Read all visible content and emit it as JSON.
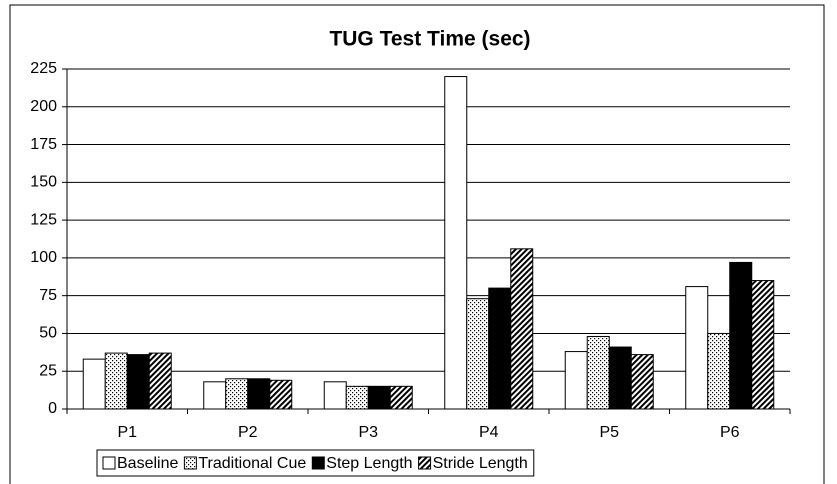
{
  "chart_data": {
    "type": "bar",
    "title": "TUG Test Time (sec)",
    "categories": [
      "P1",
      "P2",
      "P3",
      "P4",
      "P5",
      "P6"
    ],
    "series": [
      {
        "name": "Baseline",
        "color": "#ffffff",
        "pattern": "none",
        "values": [
          33,
          18,
          18,
          220,
          38,
          81
        ]
      },
      {
        "name": "Traditional Cue",
        "color": "#ffffff",
        "pattern": "dots",
        "values": [
          37,
          20,
          15,
          73,
          48,
          50
        ]
      },
      {
        "name": "Step Length",
        "color": "#000000",
        "pattern": "none",
        "values": [
          36,
          20,
          15,
          80,
          41,
          97
        ]
      },
      {
        "name": "Stride Length",
        "color": "#ffffff",
        "pattern": "hatch",
        "values": [
          37,
          19,
          15,
          106,
          36,
          85
        ]
      }
    ],
    "ylim": [
      0,
      225
    ],
    "yticks": [
      0,
      25,
      50,
      75,
      100,
      125,
      150,
      175,
      200,
      225
    ],
    "grid": true,
    "legend": "bottom"
  }
}
